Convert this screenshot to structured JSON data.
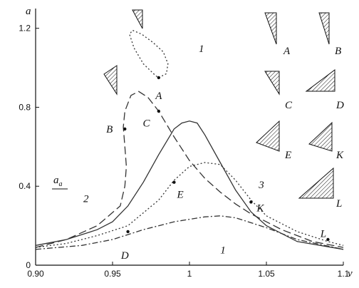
{
  "chart_data": {
    "type": "line",
    "xlabel": "ν",
    "ylabel": "a",
    "xlim": [
      0.9,
      1.1
    ],
    "ylim": [
      0,
      1.3
    ],
    "x_ticks": [
      "0.90",
      "0.95",
      "1",
      "1.05",
      "1.1"
    ],
    "x_tick_values": [
      0.9,
      0.95,
      1.0,
      1.05,
      1.1
    ],
    "y_ticks": [
      "0",
      "0.4",
      "0.8",
      "1.2"
    ],
    "y_tick_values": [
      0,
      0.4,
      0.8,
      1.2
    ],
    "grid": false,
    "legend": "none",
    "annotation_a_a": "a",
    "annotation_a_a_sub": "a",
    "series": [
      {
        "name": "1",
        "style": "dash-dot",
        "label_x": 1.02,
        "label_y": 0.06,
        "x": [
          0.9,
          0.93,
          0.95,
          0.97,
          0.99,
          1.01,
          1.02,
          1.03,
          1.05,
          1.07,
          1.1
        ],
        "y": [
          0.08,
          0.1,
          0.13,
          0.18,
          0.22,
          0.245,
          0.25,
          0.24,
          0.19,
          0.13,
          0.08
        ]
      },
      {
        "name": "1",
        "style": "dotted",
        "label_x": 1.006,
        "label_y": 1.08,
        "x": [
          0.98,
          0.985,
          0.986,
          0.983,
          0.976,
          0.969,
          0.963,
          0.961,
          0.964,
          0.97,
          0.978,
          0.98
        ],
        "y": [
          0.95,
          0.97,
          1.02,
          1.08,
          1.13,
          1.17,
          1.19,
          1.17,
          1.1,
          1.02,
          0.96,
          0.95
        ]
      },
      {
        "name": "2",
        "style": "long-dash",
        "label_x": 0.931,
        "label_y": 0.32,
        "x": [
          0.9,
          0.92,
          0.94,
          0.955,
          0.958,
          0.959,
          0.958,
          0.957,
          0.958,
          0.962,
          0.967,
          0.973,
          0.98,
          0.99,
          1.0,
          1.01,
          1.02,
          1.03,
          1.04,
          1.06,
          1.08,
          1.1
        ],
        "y": [
          0.09,
          0.13,
          0.2,
          0.3,
          0.4,
          0.5,
          0.6,
          0.7,
          0.78,
          0.86,
          0.88,
          0.85,
          0.78,
          0.65,
          0.53,
          0.44,
          0.37,
          0.31,
          0.26,
          0.18,
          0.12,
          0.09
        ]
      },
      {
        "name": "",
        "style": "solid",
        "x": [
          0.9,
          0.92,
          0.94,
          0.95,
          0.96,
          0.97,
          0.98,
          0.99,
          0.995,
          1.0,
          1.005,
          1.01,
          1.02,
          1.03,
          1.04,
          1.05,
          1.07,
          1.1
        ],
        "y": [
          0.1,
          0.13,
          0.18,
          0.22,
          0.3,
          0.42,
          0.56,
          0.69,
          0.72,
          0.73,
          0.72,
          0.66,
          0.52,
          0.38,
          0.27,
          0.2,
          0.12,
          0.08
        ]
      },
      {
        "name": "3",
        "style": "dotted",
        "label_x": 1.045,
        "label_y": 0.39,
        "x": [
          0.9,
          0.92,
          0.94,
          0.96,
          0.98,
          0.99,
          1.0,
          1.01,
          1.02,
          1.03,
          1.04,
          1.05,
          1.07,
          1.09,
          1.1
        ],
        "y": [
          0.09,
          0.11,
          0.15,
          0.2,
          0.33,
          0.43,
          0.5,
          0.52,
          0.51,
          0.43,
          0.33,
          0.25,
          0.17,
          0.12,
          0.1
        ]
      }
    ],
    "points": [
      {
        "label": "A",
        "x": 0.98,
        "y": 0.95,
        "label_x": 0.98,
        "label_y": 0.86
      },
      {
        "label": "B",
        "x": 0.958,
        "y": 0.69,
        "label_x": 0.948,
        "label_y": 0.69
      },
      {
        "label": "C",
        "x": 0.98,
        "y": 0.78,
        "label_x": 0.972,
        "label_y": 0.72
      },
      {
        "label": "D",
        "x": 0.96,
        "y": 0.17,
        "label_x": 0.958,
        "label_y": 0.05
      },
      {
        "label": "E",
        "x": 0.99,
        "y": 0.42,
        "label_x": 0.994,
        "label_y": 0.36
      },
      {
        "label": "K",
        "x": 1.04,
        "y": 0.32,
        "label_x": 1.046,
        "label_y": 0.29
      },
      {
        "label": "L",
        "x": 1.09,
        "y": 0.13,
        "label_x": 1.087,
        "label_y": 0.16
      }
    ],
    "insets": [
      {
        "label": "A"
      },
      {
        "label": "B"
      },
      {
        "label": "C"
      },
      {
        "label": "D"
      },
      {
        "label": "E"
      },
      {
        "label": "K"
      },
      {
        "label": "L"
      }
    ]
  }
}
